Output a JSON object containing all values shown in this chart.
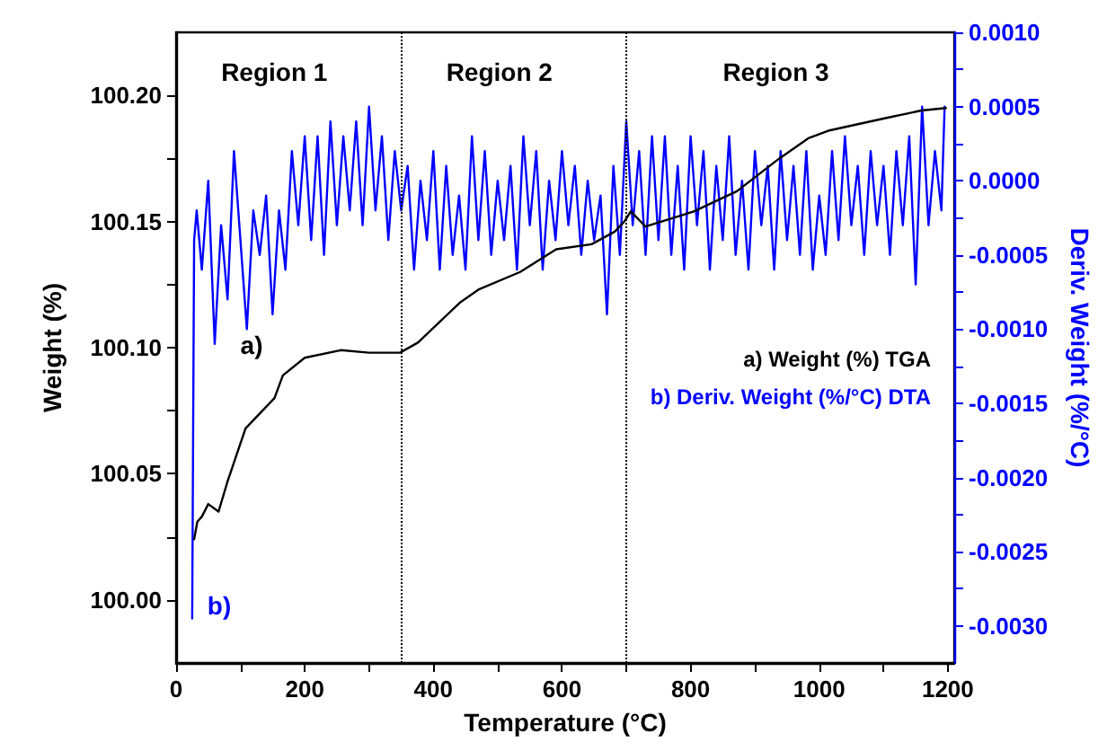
{
  "chart_data": {
    "type": "line",
    "xlabel": "Temperature (°C)",
    "ylabel": "Weight (%)",
    "y2label": "Deriv. Weight (%/°C)",
    "xlim": [
      0,
      1210
    ],
    "xticks": [
      0,
      {
        "value": 100,
        "label": null
      },
      200,
      {
        "value": 300,
        "label": null
      },
      400,
      {
        "value": 500,
        "label": null
      },
      600,
      {
        "value": 700,
        "label": null
      },
      800,
      {
        "value": 900,
        "label": null
      },
      1000,
      {
        "value": 1100,
        "label": null
      },
      1200
    ],
    "ylim": [
      99.975,
      100.225
    ],
    "yticks": [
      {
        "value": 100,
        "label": "100.00"
      },
      {
        "value": 100.025,
        "label": null
      },
      {
        "value": 100.05,
        "label": "100.05"
      },
      {
        "value": 100.075,
        "label": null
      },
      {
        "value": 100.1,
        "label": "100.10"
      },
      {
        "value": 100.125,
        "label": null
      },
      {
        "value": 100.15,
        "label": "100.15"
      },
      {
        "value": 100.175,
        "label": null
      },
      {
        "value": 100.2,
        "label": "100.20"
      }
    ],
    "y2lim": [
      -0.00325,
      0.001
    ],
    "y2ticks": [
      {
        "value": -0.003,
        "label": "-0.0030"
      },
      {
        "value": -0.00275,
        "label": null
      },
      {
        "value": -0.0025,
        "label": "-0.0025"
      },
      {
        "value": -0.00225,
        "label": null
      },
      {
        "value": -0.002,
        "label": "-0.0020"
      },
      {
        "value": -0.00175,
        "label": null
      },
      {
        "value": -0.0015,
        "label": "-0.0015"
      },
      {
        "value": -0.00125,
        "label": null
      },
      {
        "value": -0.001,
        "label": "-0.0010"
      },
      {
        "value": -0.00075,
        "label": null
      },
      {
        "value": -0.0005,
        "label": "-0.0005"
      },
      {
        "value": -0.00025,
        "label": null
      },
      {
        "value": 0,
        "label": "0.0000"
      },
      {
        "value": 0.00025,
        "label": null
      },
      {
        "value": 0.0005,
        "label": "0.0005"
      },
      {
        "value": 0.00075,
        "label": null
      },
      {
        "value": 0.001,
        "label": "0.0010"
      }
    ],
    "grid": false,
    "marker": "none",
    "legend": "right",
    "series": [
      {
        "name": "a) Weight (%) TGA",
        "color": "#000000",
        "x": [
          28,
          33,
          40,
          50,
          66,
          80,
          108,
          153,
          166,
          200,
          256,
          300,
          348,
          376,
          442,
          470,
          535,
          591,
          646,
          682,
          697,
          707,
          730,
          805,
          872,
          938,
          983,
          1014,
          1103,
          1159,
          1197
        ],
        "values": [
          100.024,
          100.031,
          100.033,
          100.038,
          100.035,
          100.047,
          100.068,
          100.08,
          100.089,
          100.096,
          100.099,
          100.098,
          100.098,
          100.102,
          100.118,
          100.123,
          100.13,
          100.139,
          100.141,
          100.146,
          100.15,
          100.154,
          100.148,
          100.154,
          100.162,
          100.175,
          100.183,
          100.186,
          100.191,
          100.194,
          100.195
        ]
      },
      {
        "name": "b) Deriv. Weight (%/°C) DTA",
        "color": "#0000ff",
        "axis": "y2",
        "x": [
          25,
          28,
          32,
          40,
          50,
          60,
          70,
          80,
          90,
          100,
          110,
          120,
          130,
          140,
          150,
          160,
          170,
          180,
          190,
          200,
          210,
          220,
          230,
          240,
          250,
          260,
          270,
          280,
          290,
          300,
          310,
          320,
          330,
          340,
          350,
          360,
          370,
          380,
          390,
          400,
          410,
          420,
          430,
          440,
          450,
          460,
          470,
          480,
          490,
          500,
          510,
          520,
          530,
          540,
          550,
          560,
          570,
          580,
          590,
          600,
          610,
          620,
          630,
          640,
          650,
          660,
          670,
          680,
          690,
          700,
          710,
          720,
          730,
          740,
          750,
          760,
          770,
          780,
          790,
          800,
          810,
          820,
          830,
          840,
          850,
          860,
          870,
          880,
          890,
          900,
          910,
          920,
          930,
          940,
          950,
          960,
          970,
          980,
          990,
          1000,
          1010,
          1020,
          1030,
          1040,
          1050,
          1060,
          1070,
          1080,
          1090,
          1100,
          1110,
          1120,
          1130,
          1140,
          1150,
          1160,
          1170,
          1180,
          1190,
          1195
        ],
        "values": [
          -0.00295,
          -0.0004,
          -0.0002,
          -0.0006,
          0,
          -0.0011,
          -0.0003,
          -0.0008,
          0.0002,
          -0.0004,
          -0.001,
          -0.0002,
          -0.0005,
          -0.0001,
          -0.0009,
          -0.0002,
          -0.0006,
          0.0002,
          -0.0003,
          0.0003,
          -0.0004,
          0.0003,
          -0.0005,
          0.0004,
          -0.0003,
          0.0003,
          -0.0002,
          0.0004,
          -0.0003,
          0.0005,
          -0.0002,
          0.0003,
          -0.0004,
          0.0002,
          -0.0002,
          0.0001,
          -0.0006,
          0,
          -0.0004,
          0.0002,
          -0.0006,
          0.0001,
          -0.0005,
          -0.0001,
          -0.0006,
          0.0003,
          -0.0004,
          0.0002,
          -0.0005,
          0,
          -0.0004,
          0.0001,
          -0.0006,
          0.0003,
          -0.0003,
          0.0002,
          -0.0006,
          0,
          -0.0004,
          0.0002,
          -0.0003,
          0.0001,
          -0.0005,
          0,
          -0.0004,
          -0.0001,
          -0.0009,
          0.0001,
          -0.0005,
          0.0004,
          -0.0003,
          0.0002,
          -0.0005,
          0.0003,
          -0.0004,
          0.0003,
          -0.0005,
          0.0001,
          -0.0006,
          0.0003,
          -0.0003,
          0.0002,
          -0.0006,
          0.0001,
          -0.0004,
          0.0003,
          -0.0005,
          0,
          -0.0006,
          0.0002,
          -0.0003,
          0.0001,
          -0.0006,
          0.0002,
          -0.0004,
          0.0001,
          -0.0005,
          0.0002,
          -0.0006,
          -0.0001,
          -0.0005,
          0.0002,
          -0.0004,
          0.0003,
          -0.0003,
          0.0001,
          -0.0005,
          0.0002,
          -0.0003,
          0.0001,
          -0.0005,
          0.0002,
          -0.0003,
          0.0003,
          -0.0007,
          0.0005,
          -0.0003,
          0.0002,
          -0.0002,
          0.0005
        ]
      }
    ],
    "ref_lines": [
      {
        "axis": "x",
        "value": 350,
        "color": "#000000",
        "line_style": "dotted"
      },
      {
        "axis": "x",
        "value": 700,
        "color": "#000000",
        "line_style": "dotted"
      }
    ],
    "annotations": [
      "Region 1",
      "Region 2",
      "Region 3",
      "a)",
      "b)"
    ]
  }
}
